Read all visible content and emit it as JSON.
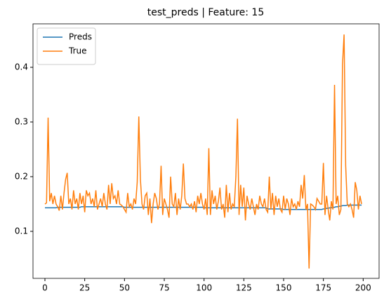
{
  "chart_data": {
    "type": "line",
    "title": "test_preds | Feature: 15",
    "x": [
      0,
      1,
      2,
      3,
      4,
      5,
      6,
      7,
      8,
      9,
      10,
      11,
      12,
      13,
      14,
      15,
      16,
      17,
      18,
      19,
      20,
      21,
      22,
      23,
      24,
      25,
      26,
      27,
      28,
      29,
      30,
      31,
      32,
      33,
      34,
      35,
      36,
      37,
      38,
      39,
      40,
      41,
      42,
      43,
      44,
      45,
      46,
      47,
      48,
      49,
      50,
      51,
      52,
      53,
      54,
      55,
      56,
      57,
      58,
      59,
      60,
      61,
      62,
      63,
      64,
      65,
      66,
      67,
      68,
      69,
      70,
      71,
      72,
      73,
      74,
      75,
      76,
      77,
      78,
      79,
      80,
      81,
      82,
      83,
      84,
      85,
      86,
      87,
      88,
      89,
      90,
      91,
      92,
      93,
      94,
      95,
      96,
      97,
      98,
      99,
      100,
      101,
      102,
      103,
      104,
      105,
      106,
      107,
      108,
      109,
      110,
      111,
      112,
      113,
      114,
      115,
      116,
      117,
      118,
      119,
      120,
      121,
      122,
      123,
      124,
      125,
      126,
      127,
      128,
      129,
      130,
      131,
      132,
      133,
      134,
      135,
      136,
      137,
      138,
      139,
      140,
      141,
      142,
      143,
      144,
      145,
      146,
      147,
      148,
      149,
      150,
      151,
      152,
      153,
      154,
      155,
      156,
      157,
      158,
      159,
      160,
      161,
      162,
      163,
      164,
      165,
      166,
      167,
      168,
      169,
      170,
      171,
      172,
      173,
      174,
      175,
      176,
      177,
      178,
      179,
      180,
      181,
      182,
      183,
      184,
      185,
      186,
      187,
      188,
      189,
      190,
      191,
      192,
      193,
      194,
      195,
      196,
      197,
      198,
      199
    ],
    "series": [
      {
        "name": "Preds",
        "color": "#1f77b4",
        "values": [
          0.143,
          0.143,
          0.143,
          0.143,
          0.143,
          0.143,
          0.143,
          0.143,
          0.144,
          0.144,
          0.144,
          0.144,
          0.144,
          0.144,
          0.144,
          0.144,
          0.144,
          0.144,
          0.144,
          0.144,
          0.144,
          0.144,
          0.144,
          0.145,
          0.145,
          0.145,
          0.145,
          0.145,
          0.145,
          0.145,
          0.145,
          0.145,
          0.145,
          0.145,
          0.145,
          0.145,
          0.145,
          0.145,
          0.145,
          0.145,
          0.145,
          0.145,
          0.145,
          0.145,
          0.145,
          0.145,
          0.145,
          0.145,
          0.145,
          0.145,
          0.144,
          0.144,
          0.144,
          0.144,
          0.144,
          0.144,
          0.144,
          0.144,
          0.144,
          0.144,
          0.144,
          0.144,
          0.144,
          0.144,
          0.144,
          0.144,
          0.144,
          0.144,
          0.144,
          0.144,
          0.144,
          0.144,
          0.144,
          0.144,
          0.144,
          0.144,
          0.144,
          0.144,
          0.144,
          0.144,
          0.144,
          0.144,
          0.144,
          0.144,
          0.144,
          0.144,
          0.144,
          0.144,
          0.144,
          0.144,
          0.144,
          0.144,
          0.144,
          0.144,
          0.144,
          0.144,
          0.144,
          0.144,
          0.144,
          0.144,
          0.143,
          0.143,
          0.143,
          0.143,
          0.143,
          0.143,
          0.143,
          0.143,
          0.143,
          0.143,
          0.143,
          0.143,
          0.143,
          0.143,
          0.143,
          0.143,
          0.143,
          0.143,
          0.143,
          0.143,
          0.143,
          0.143,
          0.143,
          0.143,
          0.143,
          0.143,
          0.143,
          0.143,
          0.143,
          0.143,
          0.143,
          0.143,
          0.143,
          0.143,
          0.143,
          0.143,
          0.143,
          0.143,
          0.143,
          0.143,
          0.141,
          0.141,
          0.141,
          0.141,
          0.141,
          0.141,
          0.141,
          0.141,
          0.141,
          0.141,
          0.14,
          0.14,
          0.14,
          0.14,
          0.14,
          0.14,
          0.14,
          0.14,
          0.14,
          0.14,
          0.14,
          0.14,
          0.14,
          0.14,
          0.14,
          0.14,
          0.14,
          0.14,
          0.14,
          0.14,
          0.14,
          0.14,
          0.14,
          0.14,
          0.14,
          0.141,
          0.141,
          0.142,
          0.142,
          0.143,
          0.143,
          0.144,
          0.144,
          0.145,
          0.145,
          0.146,
          0.146,
          0.147,
          0.147,
          0.147,
          0.148,
          0.148,
          0.148,
          0.148,
          0.148,
          0.148,
          0.148,
          0.148,
          0.148,
          0.148
        ]
      },
      {
        "name": "True",
        "color": "#ff7f0e",
        "values": [
          0.15,
          0.152,
          0.308,
          0.155,
          0.17,
          0.15,
          0.165,
          0.15,
          0.145,
          0.138,
          0.165,
          0.14,
          0.17,
          0.195,
          0.207,
          0.15,
          0.16,
          0.14,
          0.175,
          0.15,
          0.16,
          0.14,
          0.17,
          0.15,
          0.165,
          0.135,
          0.175,
          0.165,
          0.17,
          0.15,
          0.16,
          0.145,
          0.175,
          0.14,
          0.15,
          0.16,
          0.145,
          0.17,
          0.15,
          0.14,
          0.185,
          0.15,
          0.188,
          0.16,
          0.165,
          0.15,
          0.175,
          0.15,
          0.148,
          0.145,
          0.14,
          0.135,
          0.17,
          0.145,
          0.15,
          0.14,
          0.16,
          0.15,
          0.19,
          0.31,
          0.195,
          0.15,
          0.14,
          0.165,
          0.17,
          0.13,
          0.16,
          0.115,
          0.15,
          0.17,
          0.16,
          0.14,
          0.15,
          0.22,
          0.13,
          0.16,
          0.15,
          0.14,
          0.125,
          0.2,
          0.15,
          0.145,
          0.17,
          0.13,
          0.16,
          0.14,
          0.165,
          0.224,
          0.16,
          0.15,
          0.15,
          0.145,
          0.15,
          0.14,
          0.155,
          0.135,
          0.165,
          0.15,
          0.17,
          0.15,
          0.14,
          0.16,
          0.13,
          0.252,
          0.13,
          0.175,
          0.15,
          0.165,
          0.14,
          0.155,
          0.18,
          0.14,
          0.15,
          0.125,
          0.185,
          0.135,
          0.17,
          0.14,
          0.15,
          0.145,
          0.2,
          0.306,
          0.13,
          0.185,
          0.145,
          0.18,
          0.12,
          0.165,
          0.15,
          0.14,
          0.16,
          0.145,
          0.13,
          0.15,
          0.14,
          0.165,
          0.15,
          0.145,
          0.16,
          0.14,
          0.135,
          0.2,
          0.14,
          0.17,
          0.13,
          0.165,
          0.145,
          0.16,
          0.14,
          0.135,
          0.165,
          0.14,
          0.16,
          0.15,
          0.13,
          0.16,
          0.145,
          0.15,
          0.14,
          0.155,
          0.145,
          0.185,
          0.16,
          0.203,
          0.14,
          0.15,
          0.032,
          0.15,
          0.148,
          0.145,
          0.14,
          0.16,
          0.155,
          0.15,
          0.15,
          0.225,
          0.13,
          0.165,
          0.14,
          0.12,
          0.155,
          0.14,
          0.368,
          0.15,
          0.165,
          0.13,
          0.14,
          0.405,
          0.46,
          0.22,
          0.15,
          0.145,
          0.15,
          0.14,
          0.125,
          0.19,
          0.175,
          0.14,
          0.165,
          0.15
        ]
      }
    ],
    "xlim": [
      -7.5,
      210
    ],
    "xticks": [
      0,
      25,
      50,
      75,
      100,
      125,
      150,
      175,
      200
    ],
    "ylim": [
      0.014,
      0.4795
    ],
    "yticks": [
      0.1,
      0.2,
      0.3,
      0.4
    ],
    "legend": "upper left"
  }
}
